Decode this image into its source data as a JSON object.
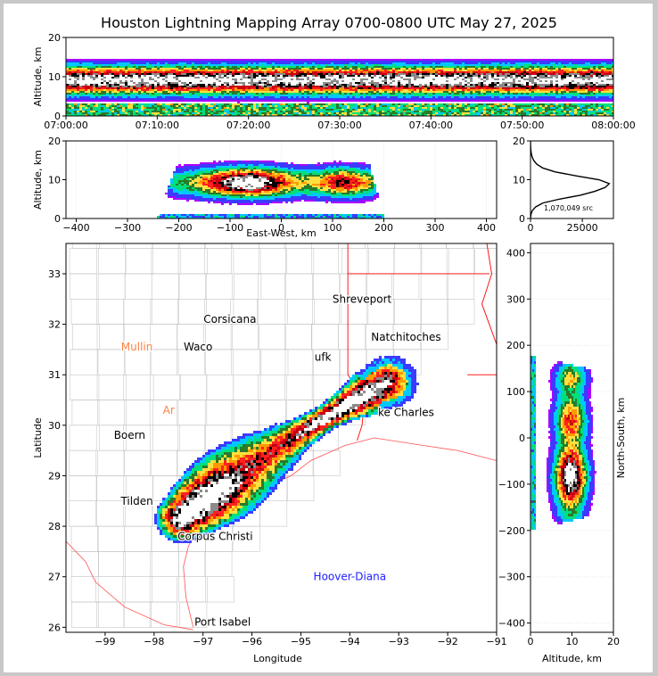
{
  "title": "Houston Lightning Mapping Array 0700-0800 UTC May 27, 2025",
  "colors": {
    "bg": "#ffffff",
    "border": "#c8c8c8",
    "colormap": [
      "#aa00ff",
      "#3b3bff",
      "#00c8ff",
      "#00e07a",
      "#2a7a2a",
      "#ffe040",
      "#ff9a00",
      "#ff2020",
      "#c80010",
      "#000000",
      "#8a8a8a",
      "#ffffff"
    ],
    "state_lines": "#ff0000",
    "county_lines": "#bdbdbd",
    "coast": "#ff5050"
  },
  "chart_data": [
    {
      "id": "altitude-vs-time",
      "type": "heatmap",
      "title": "",
      "xlabel": "",
      "ylabel": "Altitude, km",
      "xlim": [
        "07:00:00",
        "08:00:00"
      ],
      "ylim": [
        0,
        20
      ],
      "xticks": [
        "07:00:00",
        "07:10:00",
        "07:20:00",
        "07:30:00",
        "07:40:00",
        "07:50:00",
        "08:00:00"
      ],
      "yticks": [
        "0",
        "10",
        "20"
      ],
      "source_altitude_peak_km": 9
    },
    {
      "id": "altitude-vs-east-west",
      "type": "heatmap",
      "xlabel": "East-West, km",
      "ylabel": "Altitude, km",
      "xlim": [
        -420,
        420
      ],
      "ylim": [
        0,
        20
      ],
      "xticks": [
        "−400",
        "−300",
        "−200",
        "−100",
        "0",
        "100",
        "200",
        "300",
        "400"
      ],
      "yticks": [
        "0",
        "10",
        "20"
      ]
    },
    {
      "id": "altitude-histogram",
      "type": "line",
      "xlim": [
        0,
        40000
      ],
      "ylim": [
        0,
        20
      ],
      "xticks": [
        "0",
        "25000"
      ],
      "yticks": [
        "0",
        "10",
        "20"
      ],
      "annotation": "1,070,049 src",
      "x": [
        0,
        200,
        800,
        2500,
        6000,
        14000,
        24000,
        31000,
        36000,
        38000,
        33000,
        22000,
        12000,
        6000,
        3000,
        1500,
        700,
        300,
        100,
        20,
        0
      ],
      "y": [
        0,
        1,
        2,
        3,
        4,
        5,
        6,
        7,
        8,
        9,
        10,
        11,
        12,
        13,
        14,
        15,
        16,
        17,
        18,
        19,
        20
      ]
    },
    {
      "id": "plan-view-map",
      "type": "heatmap",
      "xlabel": "Longitude",
      "ylabel": "Latitude",
      "xlim": [
        -99.8,
        -91
      ],
      "ylim": [
        25.9,
        33.6
      ],
      "xticks": [
        "−99",
        "−98",
        "−97",
        "−96",
        "−95",
        "−94",
        "−93",
        "−92",
        "−91"
      ],
      "yticks": [
        "26",
        "27",
        "28",
        "29",
        "30",
        "31",
        "32",
        "33"
      ],
      "cities": [
        {
          "name": "Shreveport",
          "lon": -93.75,
          "lat": 32.5,
          "color": "#000000"
        },
        {
          "name": "Corsicana",
          "lon": -96.45,
          "lat": 32.1,
          "color": "#000000"
        },
        {
          "name": "Mullin",
          "lon": -98.35,
          "lat": 31.55,
          "color": "#ff8040"
        },
        {
          "name": "Waco",
          "lon": -97.1,
          "lat": 31.55,
          "color": "#000000"
        },
        {
          "name": "Natchitoches",
          "lon": -92.85,
          "lat": 31.75,
          "color": "#000000"
        },
        {
          "name": "ufk",
          "lon": -94.55,
          "lat": 31.35,
          "color": "#000000"
        },
        {
          "name": "Ar",
          "lon": -97.7,
          "lat": 30.3,
          "color": "#ff8040"
        },
        {
          "name": "ke Charles",
          "lon": -92.85,
          "lat": 30.25,
          "color": "#000000"
        },
        {
          "name": "Boern",
          "lon": -98.5,
          "lat": 29.8,
          "color": "#000000"
        },
        {
          "name": "Tilden",
          "lon": -98.35,
          "lat": 28.5,
          "color": "#000000"
        },
        {
          "name": "Corpus Christi",
          "lon": -96.75,
          "lat": 27.8,
          "color": "#000000"
        },
        {
          "name": "Hoover-Diana",
          "lon": -94.0,
          "lat": 27.0,
          "color": "#2020ff"
        },
        {
          "name": "Port Isabel",
          "lon": -96.6,
          "lat": 26.1,
          "color": "#000000"
        }
      ]
    },
    {
      "id": "north-south-vs-altitude",
      "type": "heatmap",
      "xlabel": "Altitude, km",
      "ylabel": "North-South, km",
      "xlim": [
        0,
        20
      ],
      "ylim": [
        -420,
        420
      ],
      "xticks": [
        "0",
        "10",
        "20"
      ],
      "yticks": [
        "−400",
        "−300",
        "−200",
        "−100",
        "0",
        "100",
        "200",
        "300",
        "400"
      ]
    }
  ]
}
